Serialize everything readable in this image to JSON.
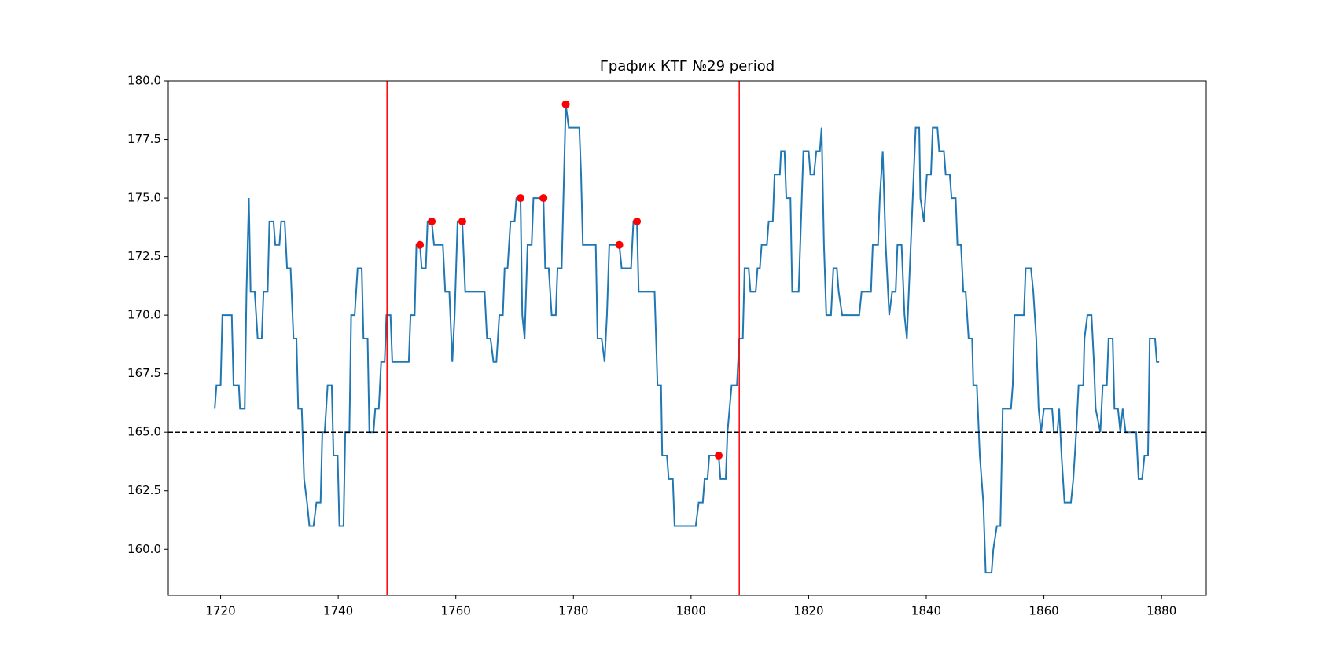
{
  "chart_data": {
    "type": "line",
    "title": "График КТГ №29 period",
    "xlim": [
      1711.1,
      1887.6
    ],
    "ylim": [
      158.03,
      180
    ],
    "xticks": [
      1720,
      1740,
      1760,
      1780,
      1800,
      1820,
      1840,
      1860,
      1880
    ],
    "yticks": [
      {
        "value": 160,
        "label": "160.0"
      },
      162.5,
      {
        "value": 165,
        "label": "165.0"
      },
      167.5,
      {
        "value": 170,
        "label": "170.0"
      },
      172.5,
      {
        "value": 175,
        "label": "175.0"
      },
      177.5,
      {
        "value": 180,
        "label": "180.0"
      }
    ],
    "series": [
      {
        "color": "#1f77b4",
        "x": [
          1719.0,
          1719.3,
          1720,
          1720.3,
          1721.9,
          1722.2,
          1723.1,
          1723.3,
          1724.1,
          1724.4,
          1724.8,
          1725.1,
          1725.8,
          1726.3,
          1727,
          1727.3,
          1728,
          1728.3,
          1729,
          1729.3,
          1730,
          1730.3,
          1730.9,
          1731.3,
          1731.9,
          1732.4,
          1732.9,
          1733.2,
          1733.8,
          1734.2,
          1734.7,
          1735.1,
          1735.8,
          1736.3,
          1737,
          1737.3,
          1737.7,
          1738.2,
          1738.9,
          1739.2,
          1739.9,
          1740.2,
          1740.9,
          1741.2,
          1741.9,
          1742.2,
          1742.8,
          1743.3,
          1744,
          1744.3,
          1745,
          1745.3,
          1746,
          1746.3,
          1746.9,
          1747.3,
          1747.9,
          1748.2,
          1748.9,
          1749.2,
          1752,
          1752.3,
          1753,
          1753.3,
          1753.9,
          1754.2,
          1754.9,
          1755.2,
          1755.9,
          1756.3,
          1757.8,
          1758.2,
          1758.9,
          1759.4,
          1759.8,
          1760.3,
          1761.1,
          1761.6,
          1764.9,
          1765.3,
          1765.9,
          1766.4,
          1766.9,
          1767.4,
          1768,
          1768.3,
          1768.8,
          1769.3,
          1770,
          1770.3,
          1771,
          1771.3,
          1771.7,
          1772.2,
          1772.9,
          1773.2,
          1774.9,
          1775.2,
          1775.8,
          1776.3,
          1777,
          1777.3,
          1778,
          1778.3,
          1778.7,
          1779.2,
          1781,
          1781.3,
          1781.6,
          1783.8,
          1784.1,
          1784.8,
          1785.3,
          1785.7,
          1786.1,
          1787.8,
          1788.2,
          1789.8,
          1790.2,
          1790.8,
          1791.1,
          1793.8,
          1794.3,
          1794.9,
          1795.1,
          1795.9,
          1796.2,
          1796.9,
          1797.2,
          1800.8,
          1801.3,
          1802,
          1802.3,
          1802.8,
          1803.1,
          1804.7,
          1805,
          1805.9,
          1806.2,
          1806.9,
          1807.8,
          1808.2,
          1808.8,
          1809.1,
          1809.8,
          1810.1,
          1811,
          1811.3,
          1811.7,
          1812,
          1812.9,
          1813.2,
          1813.9,
          1814.2,
          1815.1,
          1815.3,
          1815.9,
          1816.2,
          1816.9,
          1817.2,
          1818.3,
          1818.7,
          1819.1,
          1820,
          1820.3,
          1820.9,
          1821.3,
          1821.9,
          1822.2,
          1822.6,
          1823,
          1823.8,
          1824.2,
          1824.8,
          1825.1,
          1825.7,
          1828.6,
          1829,
          1830.6,
          1830.9,
          1831.8,
          1832.1,
          1832.6,
          1833.1,
          1833.7,
          1834.2,
          1834.8,
          1835.1,
          1835.8,
          1836.3,
          1836.7,
          1837.2,
          1837.7,
          1838.2,
          1838.8,
          1839,
          1839.6,
          1840.1,
          1840.8,
          1841.1,
          1841.9,
          1842.2,
          1843,
          1843.3,
          1844,
          1844.3,
          1845,
          1845.3,
          1845.9,
          1846.3,
          1846.7,
          1847.2,
          1847.8,
          1848,
          1848.6,
          1849.1,
          1849.7,
          1850.1,
          1851.1,
          1851.4,
          1852,
          1852.6,
          1853,
          1854.4,
          1854.7,
          1855,
          1856.6,
          1856.9,
          1857.8,
          1858.2,
          1858.7,
          1859.1,
          1859.5,
          1860,
          1861.4,
          1861.7,
          1862.3,
          1862.6,
          1863,
          1863.5,
          1864.6,
          1865,
          1865.5,
          1865.9,
          1866.7,
          1866.9,
          1867.4,
          1868.1,
          1868.5,
          1868.8,
          1869.6,
          1870,
          1870.7,
          1871,
          1871.7,
          1872,
          1872.6,
          1873,
          1873.4,
          1873.9,
          1875.7,
          1876.1,
          1876.7,
          1877.1,
          1877.7,
          1878,
          1878.9,
          1879.2,
          1879.6
        ],
        "values": [
          166,
          167,
          167,
          170,
          170,
          167,
          167,
          166,
          166,
          171,
          175,
          171,
          171,
          169,
          169,
          171,
          171,
          174,
          174,
          173,
          173,
          174,
          174,
          172,
          172,
          169,
          169,
          166,
          166,
          163,
          162,
          161,
          161,
          162,
          162,
          165,
          165,
          167,
          167,
          164,
          164,
          161,
          161,
          165,
          165,
          170,
          170,
          172,
          172,
          169,
          169,
          165,
          165,
          166,
          166,
          168,
          168,
          170,
          170,
          168,
          168,
          170,
          170,
          173,
          173,
          172,
          172,
          174,
          174,
          173,
          173,
          171,
          171,
          168,
          170,
          174,
          174,
          171,
          171,
          169,
          169,
          168,
          168,
          170,
          170,
          172,
          172,
          174,
          174,
          175,
          175,
          170,
          169,
          173,
          173,
          175,
          175,
          172,
          172,
          170,
          170,
          172,
          172,
          175,
          179,
          178,
          178,
          176,
          173,
          173,
          169,
          169,
          168,
          170,
          173,
          173,
          172,
          172,
          174,
          174,
          171,
          171,
          167,
          167,
          164,
          164,
          163,
          163,
          161,
          161,
          162,
          162,
          163,
          163,
          164,
          164,
          163,
          163,
          165,
          167,
          167,
          169,
          169,
          172,
          172,
          171,
          171,
          172,
          172,
          173,
          173,
          174,
          174,
          176,
          176,
          177,
          177,
          175,
          175,
          171,
          171,
          174,
          177,
          177,
          176,
          176,
          177,
          177,
          178,
          173,
          170,
          170,
          172,
          172,
          171,
          170,
          170,
          171,
          171,
          173,
          173,
          175,
          177,
          173,
          170,
          171,
          171,
          173,
          173,
          170,
          169,
          172,
          175,
          178,
          178,
          175,
          174,
          176,
          176,
          178,
          178,
          177,
          177,
          176,
          176,
          175,
          175,
          173,
          173,
          171,
          171,
          169,
          169,
          167,
          167,
          164,
          162,
          159,
          159,
          160,
          161,
          161,
          166,
          166,
          167,
          170,
          170,
          172,
          172,
          171,
          169,
          166,
          165,
          166,
          166,
          165,
          165,
          166,
          164,
          162,
          162,
          163,
          165,
          167,
          167,
          169,
          170,
          170,
          168,
          166,
          165,
          167,
          167,
          169,
          169,
          166,
          166,
          165,
          166,
          165,
          165,
          163,
          163,
          164,
          164,
          169,
          169,
          168,
          168
        ]
      }
    ],
    "points": {
      "color": "#ff0000",
      "x": [
        1753.9,
        1755.9,
        1761.1,
        1771.0,
        1774.9,
        1778.7,
        1787.8,
        1790.8,
        1804.7
      ],
      "values": [
        173,
        174,
        174,
        175,
        175,
        179,
        173,
        174,
        164
      ]
    },
    "vlines": {
      "color": "#ff0000",
      "x": [
        1748.3,
        1808.2
      ]
    },
    "hline": {
      "color": "#000000",
      "y": 165,
      "dashed": true
    }
  }
}
